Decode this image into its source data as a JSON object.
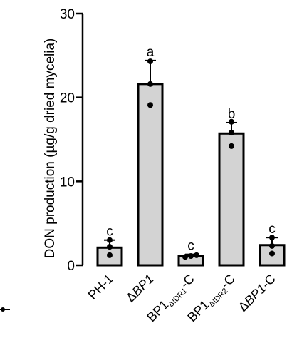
{
  "chart_data": {
    "type": "bar",
    "ylabel": "DON production (µg/g dried mycelia)",
    "ylim": [
      0,
      30
    ],
    "yticks": [
      0,
      10,
      20,
      30
    ],
    "categories": [
      {
        "parts": [
          {
            "t": "PH-1",
            "style": "normal"
          }
        ]
      },
      {
        "parts": [
          {
            "t": "Δ",
            "style": "normal"
          },
          {
            "t": "BP1",
            "style": "italic"
          }
        ]
      },
      {
        "parts": [
          {
            "t": "BP1",
            "style": "normal"
          },
          {
            "t": "ΔIDR1",
            "style": "sub"
          },
          {
            "t": "-C",
            "style": "normal"
          }
        ]
      },
      {
        "parts": [
          {
            "t": "BP1",
            "style": "normal"
          },
          {
            "t": "ΔIDR2",
            "style": "sub"
          },
          {
            "t": "-C",
            "style": "normal"
          }
        ]
      },
      {
        "parts": [
          {
            "t": "Δ",
            "style": "normal"
          },
          {
            "t": "BP1",
            "style": "italic"
          },
          {
            "t": "-C",
            "style": "normal"
          }
        ]
      }
    ],
    "values": [
      2.1,
      21.6,
      1.1,
      15.7,
      2.4
    ],
    "error": [
      0.9,
      2.8,
      0.2,
      1.3,
      0.9
    ],
    "points": [
      [
        1.2,
        2.2,
        3.0
      ],
      [
        19.1,
        21.6,
        24.3
      ],
      [
        1.0,
        1.1,
        1.2
      ],
      [
        14.2,
        15.8,
        17.1
      ],
      [
        1.4,
        2.3,
        3.3
      ]
    ],
    "significance": [
      "c",
      "a",
      "c",
      "b",
      "c"
    ],
    "bar_color": "#d3d3d3"
  }
}
